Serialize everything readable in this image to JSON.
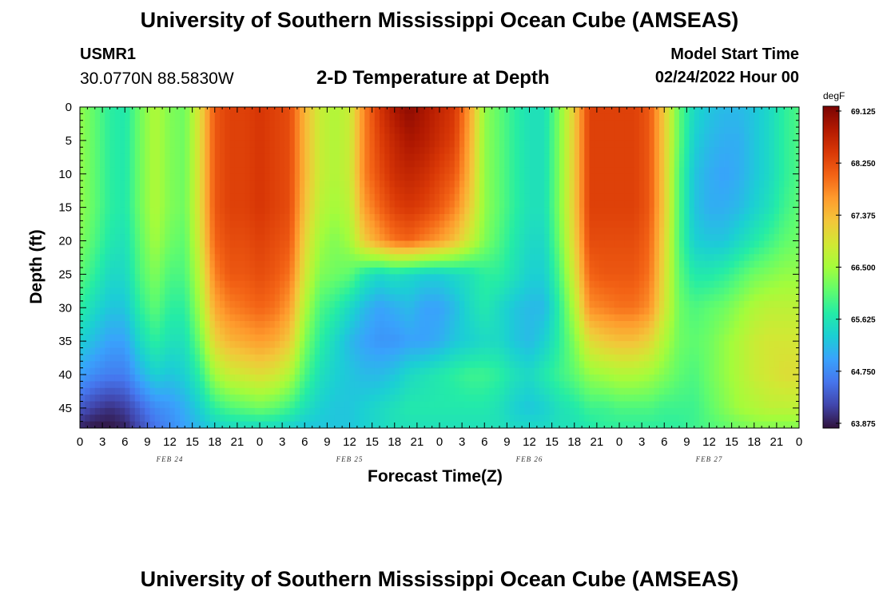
{
  "header": {
    "title": "University of Southern Mississippi Ocean Cube (AMSEAS)",
    "station_id": "USMR1",
    "coordinates": "30.0770N  88.5830W",
    "subtitle": "2-D Temperature at Depth",
    "model_start_label": "Model Start Time",
    "model_start_value": "02/24/2022 Hour 00"
  },
  "footer": {
    "title": "University of Southern Mississippi Ocean Cube (AMSEAS)"
  },
  "colors": {
    "colormap": [
      "#30123b",
      "#4145ab",
      "#4675ed",
      "#39a2fc",
      "#1bcfd4",
      "#24eca6",
      "#61fc6c",
      "#a4fc3b",
      "#d1e834",
      "#f3c63a",
      "#fe9b2d",
      "#f36315",
      "#d93806",
      "#b11901",
      "#7a0403"
    ]
  },
  "chart_data": {
    "type": "heatmap",
    "title": "2-D Temperature at Depth",
    "xlabel": "Forecast Time(Z)",
    "ylabel": "Depth (ft)",
    "x_ticks": [
      "0",
      "3",
      "6",
      "9",
      "12",
      "15",
      "18",
      "21",
      "0",
      "3",
      "6",
      "9",
      "12",
      "15",
      "18",
      "21",
      "0",
      "3",
      "6",
      "9",
      "12",
      "15",
      "18",
      "21",
      "0",
      "3",
      "6",
      "9",
      "12",
      "15",
      "18",
      "21",
      "0"
    ],
    "date_labels": [
      {
        "label": "FEB 24",
        "hour": 12
      },
      {
        "label": "FEB 25",
        "hour": 36
      },
      {
        "label": "FEB 26",
        "hour": 60
      },
      {
        "label": "FEB 27",
        "hour": 84
      }
    ],
    "x_range_hours": [
      0,
      96
    ],
    "ylim": [
      0,
      48
    ],
    "y_ticks": [
      0,
      5,
      10,
      15,
      20,
      25,
      30,
      35,
      40,
      45
    ],
    "colorbar": {
      "unit": "degF",
      "range": [
        63.875,
        69.125
      ],
      "ticks": [
        "69.125",
        "68.250",
        "67.375",
        "66.500",
        "65.625",
        "64.750",
        "63.875"
      ]
    },
    "depths_ft": [
      0,
      5,
      10,
      15,
      20,
      25,
      30,
      35,
      40,
      45,
      48
    ],
    "times_hours": [
      0,
      2,
      4,
      6,
      8,
      10,
      12,
      14,
      16,
      18,
      20,
      22,
      24,
      26,
      28,
      30,
      32,
      34,
      36,
      38,
      40,
      42,
      44,
      46,
      48,
      50,
      52,
      54,
      56,
      58,
      60,
      62,
      64,
      66,
      68,
      70,
      72,
      74,
      76,
      78,
      80,
      82,
      84,
      86,
      88,
      90,
      92,
      94,
      96
    ],
    "temps_degF": [
      [
        66.4,
        66.1,
        65.8,
        65.7,
        66.2,
        66.6,
        66.3,
        66.2,
        67.0,
        68.1,
        68.3,
        68.3,
        68.4,
        68.3,
        68.2,
        67.4,
        66.8,
        66.6,
        66.8,
        67.8,
        68.4,
        68.8,
        69.0,
        68.8,
        68.6,
        68.4,
        67.6,
        66.4,
        66.1,
        65.8,
        65.6,
        65.6,
        66.3,
        67.2,
        68.3,
        68.3,
        68.3,
        68.3,
        68.1,
        67.2,
        66.1,
        65.5,
        65.3,
        65.2,
        65.2,
        65.3,
        65.5,
        65.8,
        66.0
      ],
      [
        66.4,
        66.1,
        65.8,
        65.7,
        66.2,
        66.6,
        66.3,
        66.2,
        67.0,
        68.1,
        68.3,
        68.3,
        68.4,
        68.3,
        68.2,
        67.4,
        66.8,
        66.6,
        66.8,
        67.8,
        68.3,
        68.6,
        68.8,
        68.7,
        68.5,
        68.3,
        67.5,
        66.4,
        66.1,
        65.8,
        65.6,
        65.6,
        66.3,
        67.2,
        68.3,
        68.3,
        68.3,
        68.3,
        68.1,
        67.2,
        66.1,
        65.4,
        65.2,
        65.1,
        65.1,
        65.3,
        65.5,
        65.8,
        66.0
      ],
      [
        66.4,
        66.1,
        65.8,
        65.7,
        66.2,
        66.6,
        66.3,
        66.2,
        67.0,
        68.1,
        68.3,
        68.3,
        68.4,
        68.3,
        68.2,
        67.4,
        66.8,
        66.6,
        66.8,
        67.8,
        68.2,
        68.5,
        68.6,
        68.5,
        68.3,
        68.1,
        67.4,
        66.4,
        66.1,
        65.8,
        65.6,
        65.6,
        66.3,
        67.2,
        68.3,
        68.3,
        68.3,
        68.3,
        68.1,
        67.2,
        66.0,
        65.3,
        65.1,
        65.0,
        65.1,
        65.3,
        65.5,
        65.8,
        66.0
      ],
      [
        66.4,
        66.1,
        65.8,
        65.7,
        66.2,
        66.6,
        66.3,
        66.2,
        67.0,
        68.1,
        68.3,
        68.3,
        68.4,
        68.3,
        68.2,
        67.3,
        66.7,
        66.5,
        66.7,
        67.6,
        68.0,
        68.3,
        68.4,
        68.3,
        68.1,
        67.8,
        67.2,
        66.4,
        66.1,
        65.8,
        65.6,
        65.6,
        66.3,
        67.2,
        68.3,
        68.3,
        68.3,
        68.3,
        68.1,
        67.2,
        66.0,
        65.3,
        65.1,
        65.1,
        65.2,
        65.4,
        65.6,
        65.9,
        66.1
      ],
      [
        66.3,
        66.0,
        65.7,
        65.6,
        66.1,
        66.5,
        66.2,
        66.1,
        66.9,
        68.0,
        68.2,
        68.2,
        68.3,
        68.2,
        68.1,
        67.1,
        66.5,
        66.3,
        66.5,
        67.2,
        67.6,
        67.9,
        68.0,
        67.8,
        67.6,
        67.3,
        66.8,
        66.3,
        66.0,
        65.7,
        65.5,
        65.5,
        66.2,
        67.1,
        68.2,
        68.2,
        68.2,
        68.2,
        68.0,
        67.1,
        66.0,
        65.4,
        65.3,
        65.3,
        65.5,
        65.7,
        65.9,
        66.1,
        66.2
      ],
      [
        66.1,
        65.8,
        65.5,
        65.5,
        66.0,
        66.3,
        66.0,
        66.0,
        66.7,
        67.8,
        68.1,
        68.1,
        68.2,
        68.1,
        67.9,
        66.9,
        66.3,
        66.2,
        66.1,
        65.7,
        65.5,
        65.6,
        65.5,
        65.4,
        65.4,
        65.5,
        65.6,
        65.8,
        65.8,
        65.6,
        65.4,
        65.4,
        66.0,
        66.9,
        68.0,
        68.1,
        68.1,
        68.1,
        67.9,
        67.0,
        66.1,
        65.7,
        65.7,
        65.8,
        66.0,
        66.2,
        66.3,
        66.4,
        66.4
      ],
      [
        65.8,
        65.5,
        65.3,
        65.3,
        65.8,
        66.1,
        65.8,
        65.8,
        66.5,
        67.5,
        67.8,
        67.9,
        68.0,
        67.9,
        67.6,
        66.6,
        66.0,
        65.8,
        65.5,
        65.2,
        65.0,
        65.1,
        65.2,
        65.0,
        65.0,
        65.2,
        65.5,
        65.7,
        65.5,
        65.3,
        65.2,
        65.2,
        65.8,
        66.6,
        67.7,
        67.8,
        67.9,
        67.9,
        67.7,
        66.9,
        66.2,
        66.0,
        66.1,
        66.2,
        66.4,
        66.6,
        66.7,
        66.7,
        66.7
      ],
      [
        65.4,
        65.2,
        65.0,
        65.0,
        65.5,
        65.8,
        65.6,
        65.6,
        66.2,
        67.1,
        67.4,
        67.5,
        67.6,
        67.5,
        67.2,
        66.3,
        65.8,
        65.5,
        65.2,
        65.0,
        64.9,
        64.9,
        65.0,
        65.0,
        65.1,
        65.3,
        65.4,
        65.5,
        65.5,
        65.3,
        65.2,
        65.4,
        65.8,
        66.3,
        67.0,
        67.2,
        67.3,
        67.3,
        67.1,
        66.6,
        66.2,
        66.1,
        66.2,
        66.4,
        66.6,
        66.8,
        66.9,
        66.9,
        66.9
      ],
      [
        65.0,
        64.8,
        64.7,
        64.7,
        65.1,
        65.4,
        65.3,
        65.4,
        65.8,
        66.5,
        66.8,
        66.9,
        67.0,
        66.9,
        66.6,
        66.0,
        65.6,
        65.4,
        65.3,
        65.2,
        65.2,
        65.3,
        65.5,
        65.6,
        65.7,
        65.8,
        65.9,
        65.9,
        65.8,
        65.6,
        65.5,
        65.7,
        65.9,
        66.1,
        66.4,
        66.5,
        66.6,
        66.6,
        66.5,
        66.3,
        66.1,
        66.0,
        66.2,
        66.4,
        66.6,
        66.8,
        66.9,
        67.0,
        67.0
      ],
      [
        64.4,
        64.2,
        64.1,
        64.2,
        64.5,
        64.8,
        64.9,
        65.1,
        65.4,
        65.8,
        66.0,
        66.1,
        66.2,
        66.1,
        65.9,
        65.6,
        65.4,
        65.3,
        65.3,
        65.4,
        65.5,
        65.6,
        65.7,
        65.7,
        65.7,
        65.7,
        65.7,
        65.7,
        65.6,
        65.4,
        65.3,
        65.4,
        65.6,
        65.7,
        65.9,
        65.9,
        66.0,
        66.0,
        66.0,
        65.9,
        65.9,
        65.9,
        66.1,
        66.3,
        66.5,
        66.6,
        66.7,
        66.7,
        66.7
      ],
      [
        64.0,
        63.9,
        63.9,
        64.0,
        64.3,
        64.6,
        64.8,
        65.0,
        65.2,
        65.4,
        65.5,
        65.5,
        65.5,
        65.5,
        65.4,
        65.3,
        65.3,
        65.3,
        65.3,
        65.4,
        65.5,
        65.6,
        65.6,
        65.6,
        65.6,
        65.6,
        65.6,
        65.6,
        65.6,
        65.5,
        65.5,
        65.5,
        65.6,
        65.6,
        65.7,
        65.8,
        65.8,
        65.8,
        65.8,
        65.8,
        65.8,
        65.9,
        66.0,
        66.1,
        66.2,
        66.3,
        66.3,
        66.3,
        66.3
      ]
    ]
  }
}
